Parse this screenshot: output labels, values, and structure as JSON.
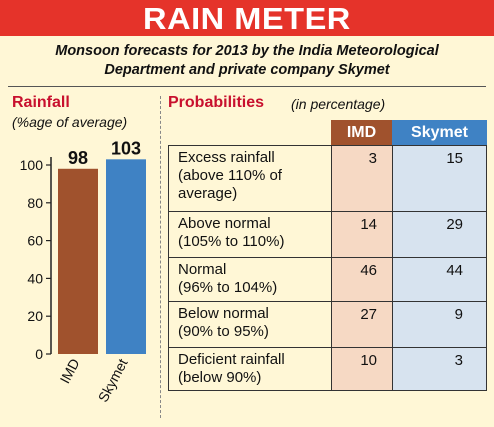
{
  "title": "RAIN METER",
  "subtitle_line1": "Monsoon forecasts for 2013 by the India Meteorological",
  "subtitle_line2": "Department and private company Skymet",
  "left_panel": {
    "title": "Rainfall",
    "subtitle": "(%age of average)"
  },
  "right_panel": {
    "title": "Probabilities",
    "subtitle": "(in percentage)"
  },
  "colors": {
    "title_bg": "#e5332a",
    "imd": "#a0522d",
    "skymet": "#3f82c4",
    "imd_cell": "#f6d9c4",
    "skymet_cell": "#d7e3ef",
    "background": "#fff7d6"
  },
  "chart_data": [
    {
      "type": "bar",
      "categories": [
        "IMD",
        "Skymet"
      ],
      "values": [
        98,
        103
      ],
      "data_labels": [
        "98",
        "103"
      ],
      "ylim": [
        0,
        103
      ],
      "yticks": [
        "0",
        "20",
        "40",
        "60",
        "80",
        "100"
      ]
    },
    {
      "type": "table",
      "columns": [
        "IMD",
        "Skymet"
      ],
      "rows": [
        {
          "label_lines": [
            "Excess rainfall",
            "(above 110% of",
            "average)"
          ],
          "imd": "3",
          "skymet": "15"
        },
        {
          "label_lines": [
            "Above normal",
            "(105% to 110%)"
          ],
          "imd": "14",
          "skymet": "29"
        },
        {
          "label_lines": [
            "Normal",
            "(96% to 104%)"
          ],
          "imd": "46",
          "skymet": "44"
        },
        {
          "label_lines": [
            "Below normal",
            "(90% to 95%)"
          ],
          "imd": "27",
          "skymet": "9"
        },
        {
          "label_lines": [
            "Deficient rainfall",
            "(below 90%)"
          ],
          "imd": "10",
          "skymet": "3"
        }
      ]
    }
  ]
}
